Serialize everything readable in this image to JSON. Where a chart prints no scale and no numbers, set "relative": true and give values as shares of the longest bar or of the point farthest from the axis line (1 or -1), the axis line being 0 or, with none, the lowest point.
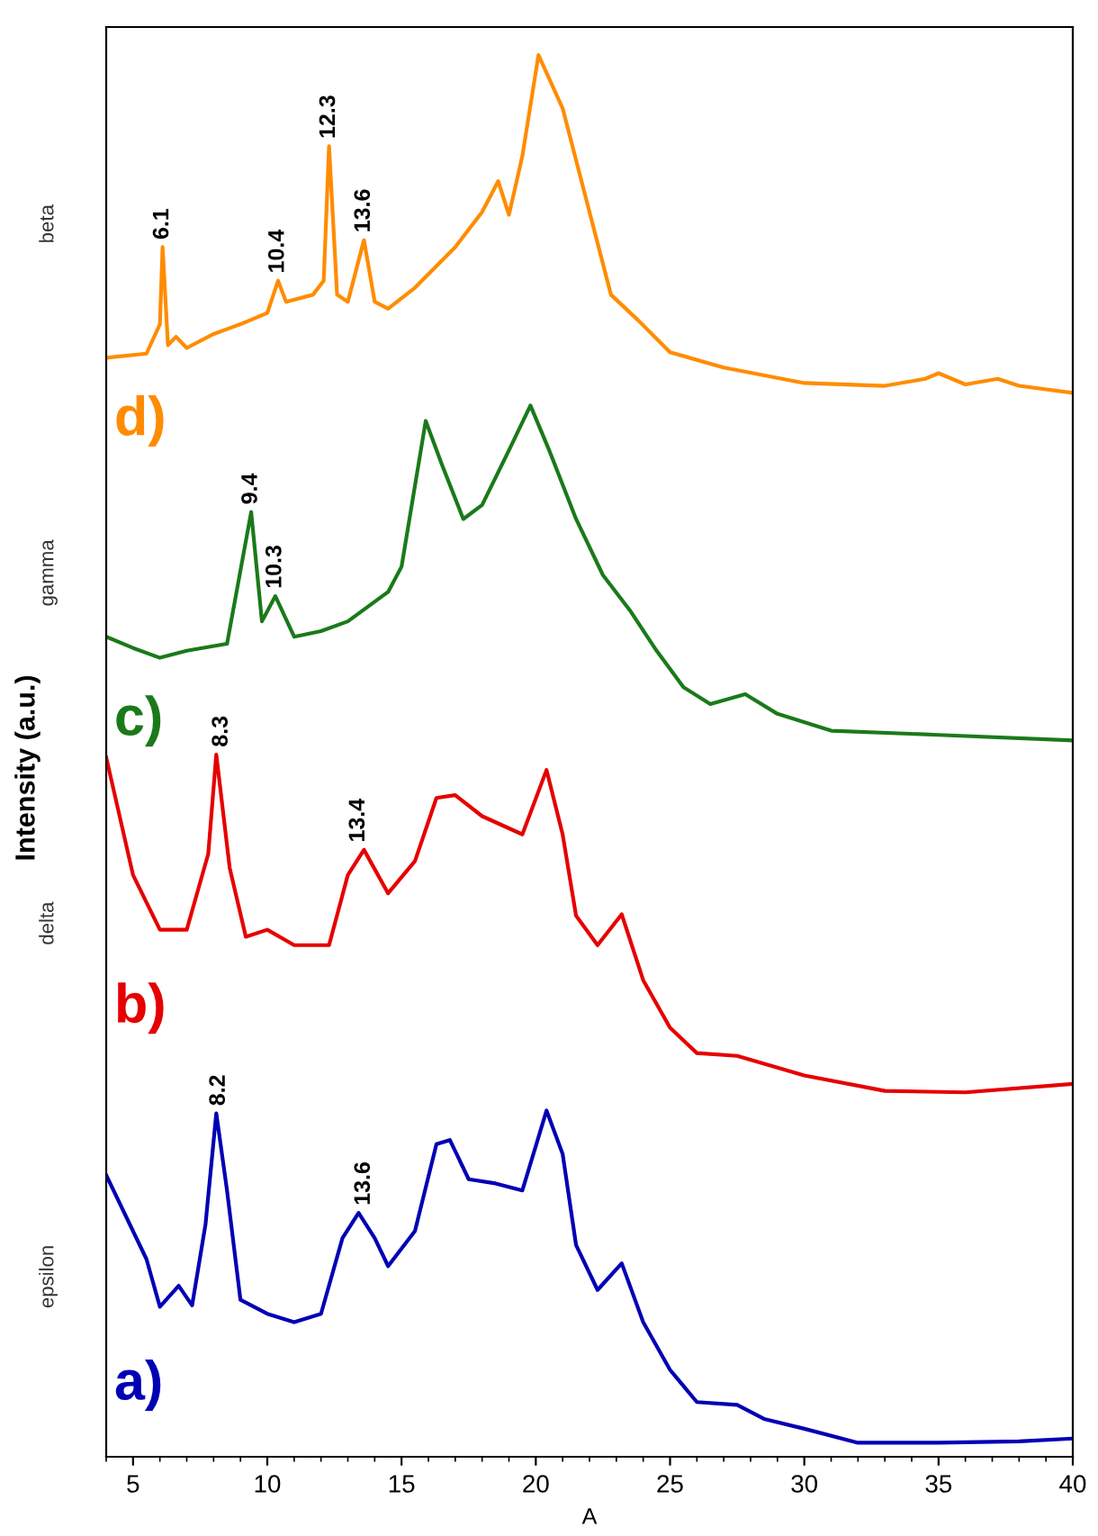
{
  "chart_data": {
    "type": "line",
    "relative": true,
    "xlabel": "A",
    "ylabel": "Intensity (a.u.)",
    "xlim": [
      4,
      40
    ],
    "xticks": [
      5,
      10,
      15,
      20,
      25,
      30,
      35,
      40
    ],
    "grid": false,
    "legend": false,
    "marker": "none",
    "line_style": "solid",
    "series": [
      {
        "name": "a)",
        "color": "#0000b4",
        "x": [
          4,
          5.5,
          6,
          6.7,
          7.2,
          7.7,
          8.1,
          8.5,
          9,
          10,
          11,
          12,
          12.8,
          13.4,
          14,
          14.5,
          15.5,
          16.3,
          16.8,
          17.5,
          18.5,
          19.5,
          20.4,
          21,
          21.5,
          22.3,
          23.2,
          24,
          25,
          26,
          27.5,
          28.5,
          30,
          32,
          35,
          38,
          40
        ],
        "values": [
          0.201,
          0.141,
          0.107,
          0.122,
          0.108,
          0.166,
          0.245,
          0.19,
          0.112,
          0.102,
          0.096,
          0.102,
          0.156,
          0.174,
          0.156,
          0.136,
          0.161,
          0.223,
          0.226,
          0.198,
          0.195,
          0.19,
          0.247,
          0.216,
          0.151,
          0.119,
          0.138,
          0.096,
          0.062,
          0.039,
          0.037,
          0.027,
          0.02,
          0.01,
          0.01,
          0.011,
          0.013
        ]
      },
      {
        "name": "b)",
        "color": "#e60000",
        "x": [
          4,
          5,
          6,
          7,
          7.8,
          8.1,
          8.6,
          9.2,
          10,
          11,
          12.3,
          13,
          13.6,
          14.5,
          15.5,
          16.3,
          17,
          18,
          19.5,
          20.4,
          21,
          21.5,
          22.3,
          23.2,
          24,
          25,
          26,
          27.5,
          30,
          33,
          36,
          40
        ],
        "values": [
          0.499,
          0.415,
          0.376,
          0.376,
          0.43,
          0.501,
          0.42,
          0.371,
          0.376,
          0.365,
          0.365,
          0.415,
          0.433,
          0.402,
          0.425,
          0.47,
          0.472,
          0.457,
          0.444,
          0.49,
          0.444,
          0.386,
          0.365,
          0.387,
          0.34,
          0.306,
          0.288,
          0.286,
          0.272,
          0.261,
          0.26,
          0.266
        ]
      },
      {
        "name": "c)",
        "color": "#1a7a1a",
        "x": [
          4,
          5,
          6,
          7,
          8.5,
          9.4,
          9.8,
          10.3,
          11,
          12,
          13,
          14.5,
          15,
          15.9,
          16.5,
          17.3,
          18,
          19,
          19.8,
          20.5,
          21.5,
          22.5,
          23.5,
          24.5,
          25.5,
          26.5,
          27.8,
          29,
          31,
          35,
          40
        ],
        "values": [
          0.585,
          0.577,
          0.57,
          0.575,
          0.58,
          0.674,
          0.596,
          0.614,
          0.585,
          0.589,
          0.596,
          0.617,
          0.635,
          0.739,
          0.708,
          0.669,
          0.679,
          0.718,
          0.75,
          0.718,
          0.669,
          0.629,
          0.604,
          0.575,
          0.549,
          0.537,
          0.544,
          0.53,
          0.518,
          0.515,
          0.511
        ]
      },
      {
        "name": "d)",
        "color": "#ff8c00",
        "x": [
          4,
          5.5,
          6,
          6.1,
          6.3,
          6.6,
          7,
          8,
          9,
          10,
          10.4,
          10.7,
          11.7,
          12.1,
          12.3,
          12.6,
          13,
          13.6,
          14,
          14.5,
          15.5,
          17,
          18,
          18.6,
          19,
          19.5,
          20.1,
          21,
          22,
          22.8,
          23.8,
          25,
          27,
          30,
          33,
          34.5,
          35,
          36,
          37.2,
          38,
          40
        ],
        "values": [
          0.784,
          0.787,
          0.808,
          0.863,
          0.793,
          0.799,
          0.791,
          0.801,
          0.808,
          0.816,
          0.839,
          0.824,
          0.829,
          0.839,
          0.935,
          0.829,
          0.824,
          0.868,
          0.824,
          0.819,
          0.834,
          0.863,
          0.888,
          0.91,
          0.886,
          0.928,
          1.0,
          0.962,
          0.888,
          0.829,
          0.811,
          0.788,
          0.777,
          0.766,
          0.764,
          0.769,
          0.773,
          0.765,
          0.769,
          0.764,
          0.759
        ]
      }
    ],
    "annotations": [
      "epsilon",
      "delta",
      "gamma",
      "beta",
      {
        "text": "8.2",
        "x": 8.2,
        "y": 0.245
      },
      {
        "text": "13.6",
        "x": 13.6,
        "y": 0.174
      },
      {
        "text": "8.3",
        "x": 8.3,
        "y": 0.501
      },
      {
        "text": "13.4",
        "x": 13.4,
        "y": 0.433
      },
      {
        "text": "9.4",
        "x": 9.4,
        "y": 0.674
      },
      {
        "text": "10.3",
        "x": 10.3,
        "y": 0.614
      },
      {
        "text": "6.1",
        "x": 6.1,
        "y": 0.863
      },
      {
        "text": "10.4",
        "x": 10.4,
        "y": 0.839
      },
      {
        "text": "12.3",
        "x": 12.3,
        "y": 0.935
      },
      {
        "text": "13.6",
        "x": 13.6,
        "y": 0.868
      }
    ]
  }
}
